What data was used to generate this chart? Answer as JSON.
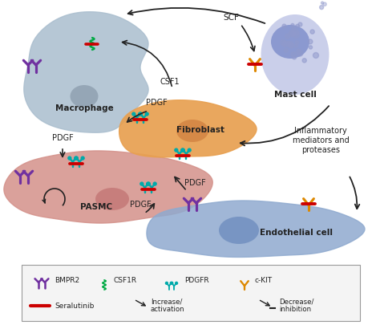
{
  "bg_color": "#ffffff",
  "macrophage_color": "#aabece",
  "pasmc_color": "#d4918a",
  "fibroblast_color": "#e8a050",
  "endothelial_color": "#8faacf",
  "mast_cell_color": "#c5cae8",
  "mast_nuc_color": "#8090cc",
  "mac_nuc_color": "#8899aa",
  "fib_nuc_color": "#d08040",
  "pas_nuc_color": "#c07070",
  "end_nuc_color": "#6888bb",
  "bmpr2_color": "#7030a0",
  "csf1r_color": "#00aa44",
  "pdgfr_color": "#00aaaa",
  "ckit_color": "#dd8800",
  "seralutinib_color": "#cc0000",
  "arrow_color": "#222222",
  "text_color": "#222222",
  "cell_labels": {
    "macrophage": "Macrophage",
    "pasmc": "PASMC",
    "fibroblast": "Fibroblast",
    "endothelial": "Endothelial cell",
    "mast_cell": "Mast cell"
  },
  "pathway_labels": {
    "csf1": "CSF1",
    "scf": "SCF",
    "pdgf1": "PDGF",
    "pdgf2": "PDGF",
    "pdgf3": "PDGF",
    "pdgf4": "PDGF",
    "inflammatory": "Inflammatory\nmediators and\nproteases"
  },
  "legend_items": {
    "bmpr2": "BMPR2",
    "csf1r": "CSF1R",
    "pdgfr": "PDGFR",
    "ckit": "c-KIT",
    "seralutinib": "Seralutinib",
    "increase": "Increase/\nactivation",
    "decrease": "Decrease/\ninhibition"
  }
}
